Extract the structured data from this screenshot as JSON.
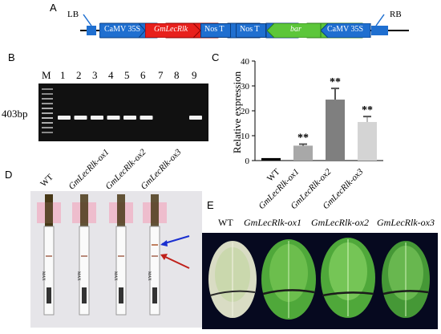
{
  "panel_a": {
    "label": "A",
    "lb": "LB",
    "rb": "RB",
    "elements": [
      {
        "text": "CaMV 35S",
        "color": "#1f6fd0"
      },
      {
        "text": "GmLecRlk",
        "color": "#e8201c"
      },
      {
        "text": "Nos T",
        "color": "#1f6fd0"
      },
      {
        "text": "Nos T",
        "color": "#1f6fd0"
      },
      {
        "text": "bar",
        "color": "#5cc63a"
      },
      {
        "text": "CaMV 35S",
        "color": "#1f6fd0"
      }
    ]
  },
  "panel_b": {
    "label": "B",
    "marker": "M",
    "lanes": [
      "1",
      "2",
      "3",
      "4",
      "5",
      "6",
      "7",
      "8",
      "9"
    ],
    "size_label": "403bp",
    "band_presence": [
      1,
      1,
      1,
      1,
      1,
      1,
      0,
      0,
      1
    ]
  },
  "panel_c": {
    "label": "C",
    "chart_data": {
      "type": "bar",
      "categories": [
        "WT",
        "GmLecRlk-ox1",
        "GmLecRlk-ox2",
        "GmLecRlk-ox3"
      ],
      "values": [
        1,
        6,
        24.5,
        15.5
      ],
      "errors": [
        0,
        0.6,
        4.5,
        2.2
      ],
      "significance": [
        "",
        "**",
        "**",
        "**"
      ],
      "colors": [
        "#000000",
        "#a8a8a8",
        "#7f7f7f",
        "#d4d4d4"
      ],
      "ylabel": "Relative expression",
      "ylim": [
        0,
        40
      ],
      "yticks": [
        "0",
        "10",
        "20",
        "30",
        "40"
      ]
    }
  },
  "panel_d": {
    "label": "D",
    "strip_labels": [
      "WT",
      "GmLecRlk-ox1",
      "GmLecRlk-ox2",
      "GmLecRlk-ox3"
    ],
    "strip_text": "MAX"
  },
  "panel_e": {
    "label": "E",
    "leaf_labels": [
      "WT",
      "GmLecRlk-ox1",
      "GmLecRlk-ox2",
      "GmLecRlk-ox3"
    ]
  }
}
